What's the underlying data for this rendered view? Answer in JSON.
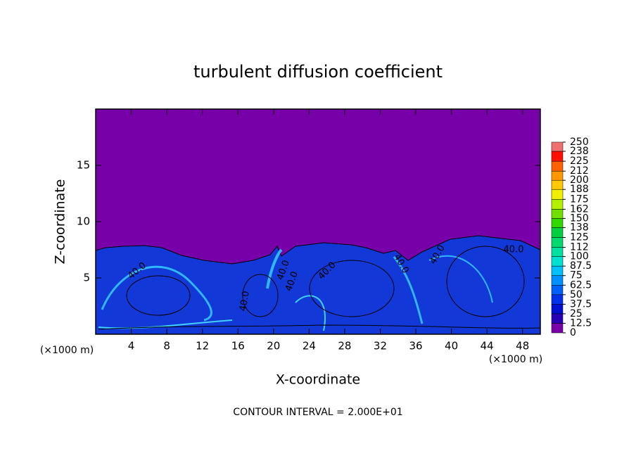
{
  "chart_data": {
    "type": "contour",
    "title": "turbulent diffusion coefficient",
    "x_label": "X-coordinate",
    "y_label": "Z-coordinate",
    "x_unit": "(×1000 m)",
    "y_unit": "(×1000 m)",
    "footer": "CONTOUR INTERVAL = 2.000E+01",
    "contour_labels": [
      "40.0",
      "40.0",
      "40.0",
      "40.0",
      "40.0",
      "40.0",
      "40.0",
      "40.0"
    ],
    "xlim": [
      0,
      50
    ],
    "ylim": [
      0,
      20
    ],
    "xticks": [
      4,
      8,
      12,
      16,
      20,
      24,
      28,
      32,
      36,
      40,
      44,
      48
    ],
    "yticks": [
      5,
      10,
      15
    ],
    "colorbar": {
      "levels": [
        0,
        12.5,
        25,
        37.5,
        50,
        62.5,
        75,
        87.5,
        100,
        112,
        125,
        138,
        150,
        162,
        175,
        188,
        200,
        212,
        225,
        238,
        250
      ],
      "colors": [
        "#7800a8",
        "#2800b8",
        "#0010d0",
        "#0030e8",
        "#0060f8",
        "#0090ff",
        "#00c0ff",
        "#00e0d0",
        "#00e0a0",
        "#00d870",
        "#00d040",
        "#30d800",
        "#70e000",
        "#b0f000",
        "#f0f000",
        "#ffc800",
        "#ff9800",
        "#ff6000",
        "#ff1000",
        "#f07070"
      ]
    }
  }
}
